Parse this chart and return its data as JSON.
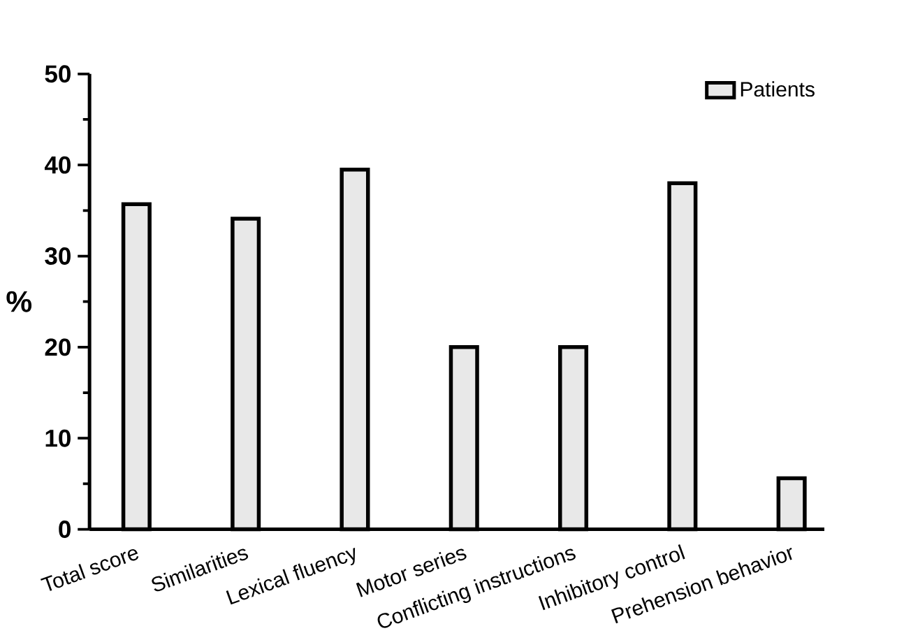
{
  "chart_data": {
    "type": "bar",
    "ylabel": "%",
    "categories": [
      "Total score",
      "Similarities",
      "Lexical fluency",
      "Motor series",
      "Conflicting instructions",
      "Inhibitory control",
      "Prehension behavior"
    ],
    "series": [
      {
        "name": "Patients",
        "color": "#e8e8e8",
        "values": [
          35.7,
          34.1,
          39.5,
          20,
          20,
          38,
          5.6
        ]
      }
    ],
    "ylim": [
      0,
      50
    ],
    "yticks": [
      0,
      10,
      20,
      30,
      40,
      50
    ],
    "legend": "top right",
    "grid": false
  }
}
